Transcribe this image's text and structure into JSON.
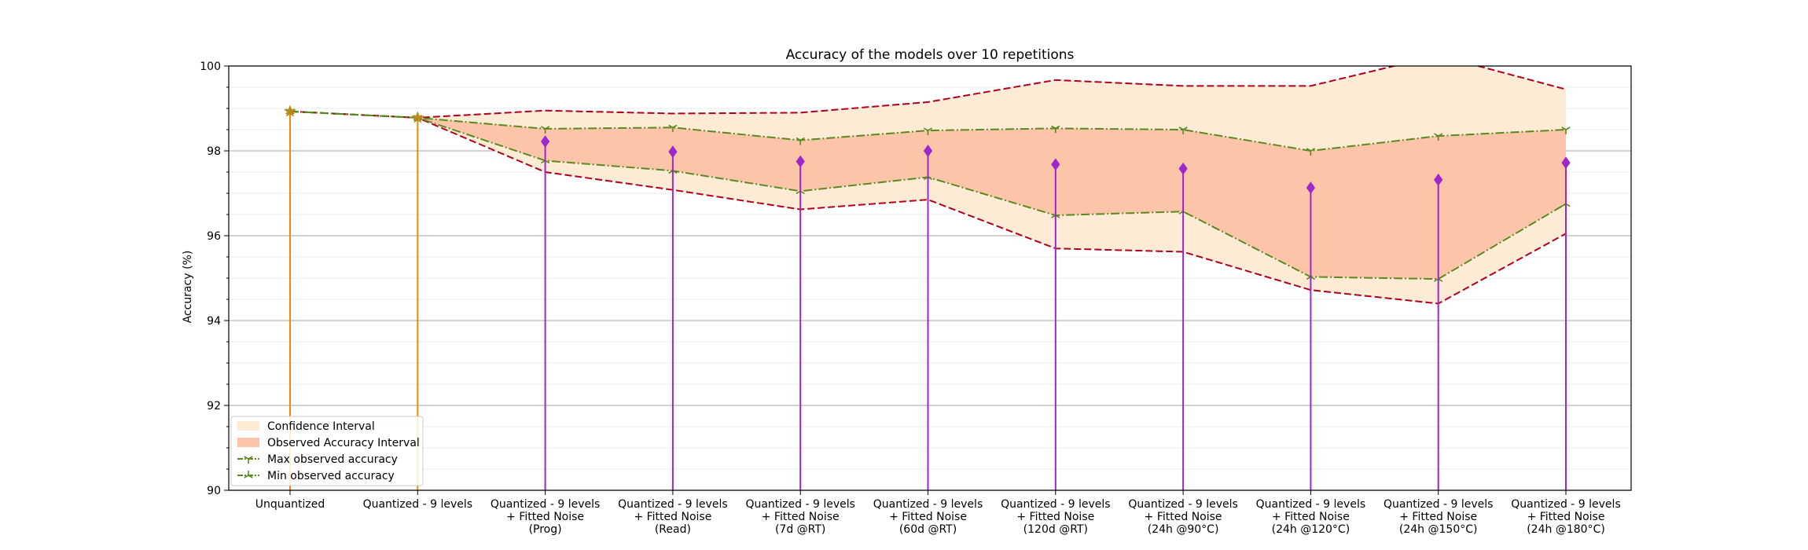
{
  "chart_data": {
    "type": "line",
    "title": "Accuracy of the models over 10 repetitions",
    "xlabel": "",
    "ylabel": "Accuracy (%)",
    "ylim": [
      90,
      100
    ],
    "yticks": [
      90,
      92,
      94,
      96,
      98,
      100
    ],
    "grid": "y",
    "legend_position": "lower-left",
    "categories": [
      [
        "Unquantized"
      ],
      [
        "Quantized - 9 levels"
      ],
      [
        "Quantized - 9 levels",
        "+ Fitted Noise",
        "(Prog)"
      ],
      [
        "Quantized - 9 levels",
        "+ Fitted Noise",
        "(Read)"
      ],
      [
        "Quantized - 9 levels",
        "+ Fitted Noise",
        "(7d @RT)"
      ],
      [
        "Quantized - 9 levels",
        "+ Fitted Noise",
        "(60d @RT)"
      ],
      [
        "Quantized - 9 levels",
        "+ Fitted Noise",
        "(120d @RT)"
      ],
      [
        "Quantized - 9 levels",
        "+ Fitted Noise",
        "(24h @90°C)"
      ],
      [
        "Quantized - 9 levels",
        "+ Fitted Noise",
        "(24h @120°C)"
      ],
      [
        "Quantized - 9 levels",
        "+ Fitted Noise",
        "(24h @150°C)"
      ],
      [
        "Quantized - 9 levels",
        "+ Fitted Noise",
        "(24h @180°C)"
      ]
    ],
    "mean_accuracy": [
      98.93,
      98.78,
      98.22,
      97.98,
      97.75,
      98.0,
      97.68,
      97.58,
      97.13,
      97.32,
      97.72
    ],
    "confidence_upper": [
      98.93,
      98.78,
      98.95,
      98.88,
      98.9,
      99.15,
      99.67,
      99.53,
      99.53,
      100.25,
      99.45
    ],
    "confidence_lower": [
      98.93,
      98.78,
      97.5,
      97.08,
      96.62,
      96.85,
      95.7,
      95.62,
      94.72,
      94.4,
      96.05
    ],
    "max_observed": [
      98.93,
      98.78,
      98.52,
      98.55,
      98.25,
      98.48,
      98.53,
      98.5,
      98.0,
      98.35,
      98.5
    ],
    "min_observed": [
      98.93,
      98.78,
      97.77,
      97.53,
      97.05,
      97.38,
      96.48,
      96.57,
      95.03,
      94.98,
      96.75
    ],
    "colors": {
      "confidence_fill": "#fdebd6",
      "observed_fill": "#fcc4a8",
      "confidence_line": "#b0001a",
      "observed_line": "#5a8a1e",
      "mean_marker": "#9d27cd",
      "unquantized_marker": "#b88c1a",
      "unquantized_stem": "#f08a00",
      "grid": "#c8c8c8"
    },
    "legend": [
      {
        "label": "Confidence Interval",
        "kind": "confidence-fill"
      },
      {
        "label": "Observed Accuracy Interval",
        "kind": "observed-fill"
      },
      {
        "label": "Max observed accuracy",
        "kind": "max-line"
      },
      {
        "label": "Min observed accuracy",
        "kind": "min-line"
      }
    ]
  }
}
